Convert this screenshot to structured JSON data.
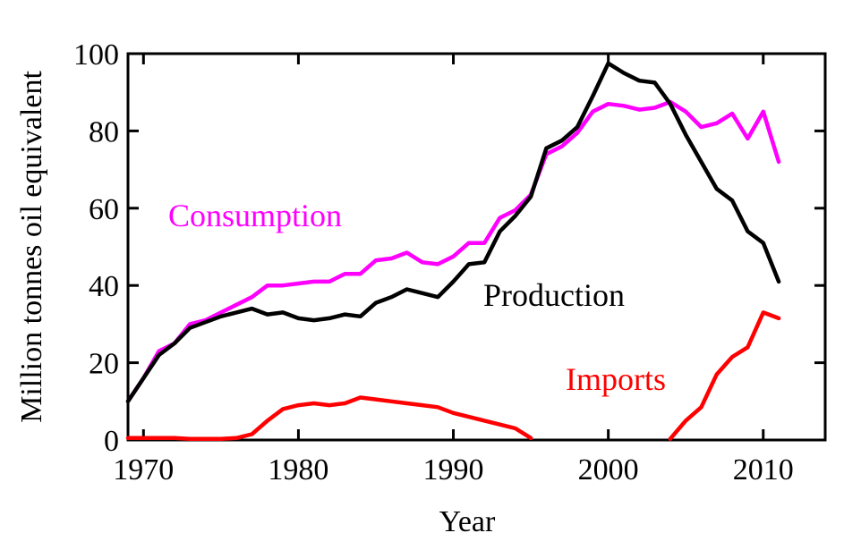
{
  "chart_data": {
    "type": "line",
    "xlabel": "Year",
    "ylabel": "Million tonnes oil equivalent",
    "xlim": [
      1969,
      2014
    ],
    "ylim": [
      0,
      100
    ],
    "xticks": [
      1970,
      1980,
      1990,
      2000,
      2010
    ],
    "yticks": [
      0,
      20,
      40,
      60,
      80,
      100
    ],
    "grid": false,
    "series": [
      {
        "name": "Consumption",
        "color": "#ff00ff",
        "x": [
          1969,
          1970,
          1971,
          1972,
          1973,
          1974,
          1975,
          1976,
          1977,
          1978,
          1979,
          1980,
          1981,
          1982,
          1983,
          1984,
          1985,
          1986,
          1987,
          1988,
          1989,
          1990,
          1991,
          1992,
          1993,
          1994,
          1995,
          1996,
          1997,
          1998,
          1999,
          2000,
          2001,
          2002,
          2003,
          2004,
          2005,
          2006,
          2007,
          2008,
          2009,
          2010,
          2011
        ],
        "y": [
          10,
          16,
          23,
          25,
          30,
          31,
          33,
          35,
          37,
          40,
          40,
          40.5,
          41,
          41,
          43,
          43,
          46.5,
          47,
          48.5,
          46,
          45.5,
          47.5,
          51,
          51,
          57.5,
          59.5,
          63.5,
          74,
          76,
          79.5,
          85,
          87,
          86.5,
          85.5,
          86,
          87.5,
          85,
          81,
          82,
          84.5,
          78,
          85,
          72
        ]
      },
      {
        "name": "Production",
        "color": "#000000",
        "x": [
          1969,
          1970,
          1971,
          1972,
          1973,
          1974,
          1975,
          1976,
          1977,
          1978,
          1979,
          1980,
          1981,
          1982,
          1983,
          1984,
          1985,
          1986,
          1987,
          1988,
          1989,
          1990,
          1991,
          1992,
          1993,
          1994,
          1995,
          1996,
          1997,
          1998,
          1999,
          2000,
          2001,
          2002,
          2003,
          2004,
          2005,
          2006,
          2007,
          2008,
          2009,
          2010,
          2011
        ],
        "y": [
          10,
          16,
          22,
          25,
          29,
          30.5,
          32,
          33,
          34,
          32.5,
          33,
          31.5,
          31,
          31.5,
          32.5,
          32,
          35.5,
          37,
          39,
          38,
          37,
          41,
          45.5,
          46,
          54,
          58,
          63,
          75.5,
          77.5,
          81,
          89,
          97.5,
          95,
          93,
          92.5,
          87,
          79,
          72,
          65,
          62,
          54,
          51,
          41
        ]
      },
      {
        "name": "Imports",
        "color": "#ff0000",
        "x": [
          1969,
          1970,
          1971,
          1972,
          1973,
          1974,
          1975,
          1976,
          1977,
          1978,
          1979,
          1980,
          1981,
          1982,
          1983,
          1984,
          1985,
          1986,
          1987,
          1988,
          1989,
          1990,
          1991,
          1992,
          1993,
          1994,
          1995,
          1996,
          1997,
          1998,
          1999,
          2000,
          2001,
          2002,
          2003,
          2004,
          2005,
          2006,
          2007,
          2008,
          2009,
          2010,
          2011
        ],
        "y": [
          0.5,
          0.5,
          0.5,
          0.5,
          0.3,
          0.3,
          0.3,
          0.5,
          1.5,
          5,
          8,
          9,
          9.5,
          9,
          9.5,
          11,
          10.5,
          10,
          9.5,
          9,
          8.5,
          7,
          6,
          5,
          4,
          3,
          0.5,
          null,
          null,
          null,
          null,
          null,
          null,
          null,
          null,
          0.3,
          5,
          8.5,
          17,
          21.5,
          24,
          33,
          31.5
        ]
      }
    ]
  }
}
